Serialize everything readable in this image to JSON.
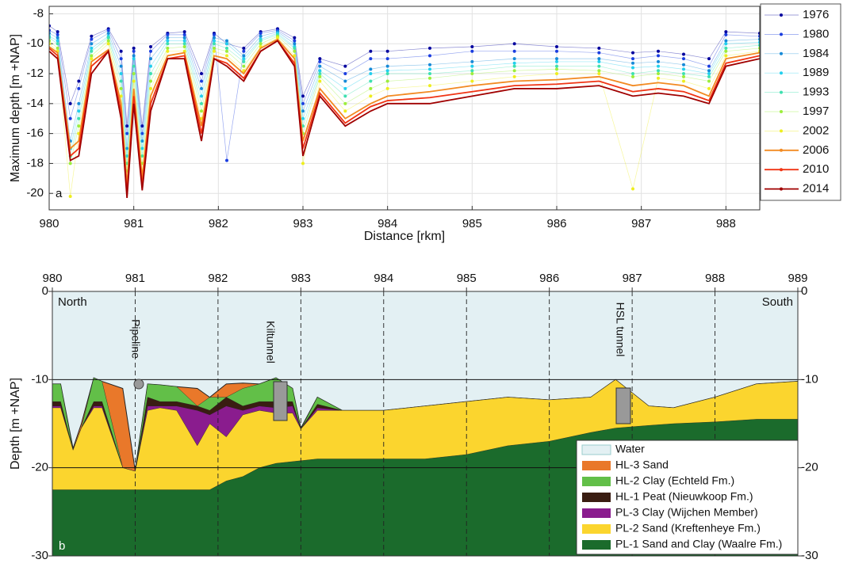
{
  "chart_data": [
    {
      "type": "line",
      "x_label": "Distance [rkm]",
      "y_label": "Maximum depth [m +NAP]",
      "panel_label": "a",
      "xlim": [
        980,
        988.4
      ],
      "ylim": [
        -21.1,
        -7.5
      ],
      "xticks": [
        980,
        981,
        982,
        983,
        984,
        985,
        986,
        987,
        988
      ],
      "yticks": [
        -8,
        -10,
        -12,
        -14,
        -16,
        -18,
        -20
      ],
      "grid": true,
      "legend": "outside right",
      "x": [
        980.0,
        980.1,
        980.25,
        980.35,
        980.5,
        980.7,
        980.85,
        980.92,
        981.0,
        981.1,
        981.2,
        981.4,
        981.6,
        981.8,
        981.95,
        982.1,
        982.3,
        982.5,
        982.7,
        982.9,
        983.0,
        983.2,
        983.5,
        983.8,
        984.0,
        984.5,
        985.0,
        985.5,
        986.0,
        986.5,
        986.9,
        987.2,
        987.5,
        987.8,
        988.0,
        988.4
      ],
      "series": [
        {
          "name": "1976",
          "color": "#00009e",
          "style": "dots",
          "values": [
            -8.8,
            -9.2,
            -14,
            -12.5,
            -9.5,
            -9,
            -10.5,
            -15.5,
            -10.3,
            -15.5,
            -10.2,
            -9.3,
            -9.2,
            -12,
            -9.3,
            -10,
            -10.3,
            -9.2,
            -9,
            -9.6,
            -13.5,
            -11,
            -11.5,
            -10.5,
            -10.5,
            -10.3,
            -10.2,
            -10,
            -10.2,
            -10.3,
            -10.6,
            -10.5,
            -10.7,
            -11,
            -9.2,
            -9.3
          ]
        },
        {
          "name": "1980",
          "color": "#1a3de0",
          "style": "dots",
          "values": [
            -9.1,
            -9.4,
            -15,
            -13,
            -9.7,
            -9.1,
            -11,
            -16,
            -10.5,
            -16,
            -10.5,
            -9.4,
            -9.4,
            -12.5,
            -9.4,
            -17.8,
            -10.5,
            -9.3,
            -9.1,
            -9.8,
            -14,
            -11.2,
            -12,
            -11,
            -11,
            -10.8,
            -10.5,
            -10.5,
            -10.5,
            -10.6,
            -11,
            -10.8,
            -11,
            -11.5,
            -9.4,
            -9.5
          ]
        },
        {
          "name": "1984",
          "color": "#168ad8",
          "style": "dots",
          "values": [
            -9.3,
            -9.6,
            -16.5,
            -14,
            -10,
            -9.3,
            -11.5,
            -17,
            -10.8,
            -16.5,
            -11,
            -9.6,
            -9.6,
            -13,
            -9.6,
            -9.8,
            -10.8,
            -9.5,
            -9.2,
            -10,
            -14.5,
            -11.5,
            -12.5,
            -11.7,
            -11.5,
            -11.4,
            -11.2,
            -11,
            -11,
            -11,
            -11.3,
            -11.2,
            -11.4,
            -11.8,
            -9.8,
            -9.7
          ]
        },
        {
          "name": "1989",
          "color": "#22cfee",
          "style": "dots",
          "values": [
            -9.5,
            -9.8,
            -17,
            -14.5,
            -10.3,
            -9.5,
            -12,
            -17.5,
            -11,
            -17,
            -11.5,
            -9.8,
            -9.8,
            -13.5,
            -9.8,
            -10,
            -11,
            -9.7,
            -9.3,
            -10.2,
            -15,
            -11.8,
            -13,
            -12,
            -11.8,
            -11.7,
            -11.5,
            -11.3,
            -11.2,
            -11.2,
            -11.6,
            -11.5,
            -11.7,
            -12,
            -10,
            -9.9
          ]
        },
        {
          "name": "1993",
          "color": "#3ee0b0",
          "style": "dots",
          "values": [
            -9.6,
            -10,
            -17.5,
            -15,
            -10.5,
            -9.6,
            -12.5,
            -18,
            -11.5,
            -17.5,
            -12,
            -10,
            -10,
            -14,
            -10,
            -10.3,
            -11.2,
            -9.8,
            -9.4,
            -10.3,
            -15.5,
            -12,
            -13.5,
            -12.5,
            -12,
            -12,
            -11.8,
            -11.5,
            -11.5,
            -11.5,
            -12,
            -11.8,
            -12,
            -12.2,
            -10.3,
            -10.1
          ]
        },
        {
          "name": "1997",
          "color": "#9cee3c",
          "style": "dots",
          "values": [
            -9.8,
            -10.3,
            -18,
            -15.5,
            -10.8,
            -9.8,
            -13,
            -18.5,
            -12,
            -18,
            -12.5,
            -10.3,
            -10.2,
            -14.5,
            -10.3,
            -10.5,
            -11.5,
            -10,
            -9.5,
            -10.5,
            -16,
            -12.2,
            -14,
            -13,
            -12.5,
            -12.3,
            -12,
            -11.8,
            -11.7,
            -11.8,
            -12.2,
            -12,
            -12.2,
            -12.5,
            -10.5,
            -10.3
          ]
        },
        {
          "name": "2002",
          "color": "#eeee1e",
          "style": "dots",
          "values": [
            -10,
            -10.5,
            -20.2,
            -16,
            -11,
            -10,
            -13.5,
            -19,
            -12.5,
            -18.5,
            -13,
            -10.5,
            -10.5,
            -15,
            -10.5,
            -10.8,
            -11.8,
            -10.2,
            -9.6,
            -10.8,
            -18,
            -12.5,
            -14.5,
            -13.5,
            -13,
            -12.8,
            -12.5,
            -12.2,
            -12,
            -12,
            -19.7,
            -12.3,
            -12.5,
            -13,
            -10.8,
            -10.5
          ]
        },
        {
          "name": "2006",
          "color": "#f28a22",
          "style": "line",
          "values": [
            -10.2,
            -10.6,
            -17,
            -16.5,
            -11.2,
            -10.4,
            -14,
            -19.5,
            -13,
            -19,
            -13.5,
            -10.8,
            -10.6,
            -15.5,
            -10.8,
            -11,
            -12,
            -10.3,
            -9.7,
            -11,
            -16.5,
            -13,
            -15,
            -14,
            -13.5,
            -13.2,
            -12.8,
            -12.5,
            -12.4,
            -12.2,
            -12.8,
            -12.6,
            -12.8,
            -13.5,
            -11,
            -10.6
          ]
        },
        {
          "name": "2010",
          "color": "#f03414",
          "style": "line",
          "values": [
            -10.3,
            -10.8,
            -17.5,
            -17,
            -11.5,
            -10.5,
            -14.5,
            -20,
            -13.5,
            -19.5,
            -14,
            -11,
            -10.8,
            -16,
            -11,
            -11.3,
            -12.3,
            -10.5,
            -9.8,
            -11.3,
            -17,
            -13.3,
            -15.3,
            -14.2,
            -13.8,
            -13.6,
            -13.2,
            -12.8,
            -12.7,
            -12.5,
            -13.2,
            -13,
            -13.2,
            -13.8,
            -11.3,
            -10.8
          ]
        },
        {
          "name": "2014",
          "color": "#a00000",
          "style": "line",
          "values": [
            -10.5,
            -11,
            -17.8,
            -17.5,
            -12,
            -10.5,
            -15,
            -20.3,
            -14,
            -19.8,
            -14.5,
            -11,
            -11,
            -16.5,
            -11,
            -11.5,
            -12.5,
            -10.5,
            -9.8,
            -11.5,
            -17.5,
            -13.5,
            -15.5,
            -14.5,
            -14,
            -14,
            -13.5,
            -13,
            -13,
            -12.8,
            -13.5,
            -13.3,
            -13.5,
            -14,
            -11.5,
            -11
          ]
        }
      ]
    },
    {
      "type": "area",
      "y_label": "Depth [m +NAP]",
      "panel_label": "b",
      "annotations": [
        "North",
        "South",
        "Pipeline",
        "Kiltunnel",
        "HSL tunnel"
      ],
      "xlim": [
        980,
        989
      ],
      "ylim": [
        -30,
        0
      ],
      "xticks": [
        980,
        981,
        982,
        983,
        984,
        985,
        986,
        987,
        988,
        989
      ],
      "yticks": [
        0,
        -10,
        -20,
        -30
      ],
      "legend": "lower right",
      "x": [
        980.0,
        980.1,
        980.25,
        980.35,
        980.5,
        980.6,
        980.85,
        981.0,
        981.15,
        981.3,
        981.5,
        981.75,
        981.9,
        982.1,
        982.3,
        982.5,
        982.7,
        982.9,
        983.0,
        983.2,
        983.5,
        984.0,
        984.5,
        985.0,
        985.5,
        986.0,
        986.5,
        986.8,
        987.2,
        987.5,
        988.0,
        988.5,
        989.0
      ],
      "series": [
        {
          "name": "Water",
          "color": "#e3f0f3",
          "values": [
            0,
            0,
            0,
            0,
            0,
            0,
            0,
            0,
            0,
            0,
            0,
            0,
            0,
            0,
            0,
            0,
            0,
            0,
            0,
            0,
            0,
            0,
            0,
            0,
            0,
            0,
            0,
            0,
            0,
            0,
            0,
            0,
            0
          ]
        },
        {
          "name": "HL-3 Sand",
          "color": "#e9782a",
          "values": [
            -10.5,
            -10.5,
            -17.8,
            -15,
            -9.8,
            -10.2,
            -11,
            -20.3,
            -10.5,
            -10.6,
            -10.8,
            -11,
            -12,
            -10.5,
            -10.4,
            -10.5,
            -9.8,
            -11,
            -15.5,
            -12,
            -13.5,
            -13.5,
            -13,
            -12.5,
            -12,
            -12.3,
            -12,
            -10,
            -13,
            -13.2,
            -12,
            -10.5,
            -10.2
          ]
        },
        {
          "name": "HL-2 Clay (Echteld Fm.)",
          "color": "#62bf48",
          "values": [
            -10.5,
            -10.5,
            -18,
            -15.5,
            -9.8,
            -10.2,
            -20,
            -20.4,
            -10.5,
            -10.6,
            -10.8,
            -13,
            -12,
            -12,
            -11,
            -10.5,
            -9.8,
            -11,
            -15.6,
            -12,
            -13.5,
            -13.5,
            -13,
            -12.5,
            -12,
            -12.3,
            -12,
            -10,
            -13,
            -13.2,
            -12,
            -10.5,
            -10.2
          ]
        },
        {
          "name": "HL-1 Peat (Nieuwkoop Fm.)",
          "color": "#3a1d12",
          "values": [
            -12.5,
            -12.5,
            -18,
            -15.5,
            -12.5,
            -12.5,
            -20,
            -20.4,
            -12,
            -12.5,
            -12.5,
            -13,
            -13.5,
            -12,
            -13,
            -12.5,
            -12.5,
            -12.5,
            -15.6,
            -12.8,
            -13.5,
            -13.5,
            -13,
            -12.5,
            -12,
            -12.3,
            -12,
            -10,
            -13,
            -13.2,
            -12,
            -10.5,
            -10.2
          ]
        },
        {
          "name": "PL-3 Clay (Wijchen Member)",
          "color": "#8a1c8e",
          "values": [
            -13,
            -13,
            -18,
            -15.5,
            -13,
            -13,
            -20,
            -20.4,
            -13,
            -13,
            -13,
            -13.5,
            -14,
            -13,
            -13.5,
            -13,
            -13.2,
            -13,
            -15.6,
            -13.2,
            -13.5,
            -13.5,
            -13,
            -12.5,
            -12,
            -12.3,
            -12,
            -10,
            -13,
            -13.2,
            -12,
            -10.5,
            -10.2
          ]
        },
        {
          "name": "PL-2 Sand (Kreftenheye Fm.)",
          "color": "#fbd52e",
          "values": [
            -13.2,
            -13.2,
            -18,
            -15.5,
            -13.2,
            -13.2,
            -20,
            -20.4,
            -13.5,
            -13.2,
            -13.5,
            -17.5,
            -15,
            -16.5,
            -14,
            -13.5,
            -13.8,
            -13.8,
            -15.6,
            -13.5,
            -13.5,
            -13.5,
            -13,
            -12.5,
            -12,
            -12.3,
            -12,
            -10,
            -13,
            -13.2,
            -12,
            -10.5,
            -10.2
          ]
        },
        {
          "name": "PL-1 Sand and Clay (Waalre Fm.)",
          "color": "#1b6b2c",
          "values": [
            -22.5,
            -22.5,
            -22.5,
            -22.5,
            -22.5,
            -22.5,
            -22.5,
            -22.5,
            -22.5,
            -22.5,
            -22.5,
            -22.5,
            -22.5,
            -21.5,
            -21,
            -20,
            -19.5,
            -19.3,
            -19.2,
            -19,
            -19,
            -19,
            -19,
            -18.5,
            -17.5,
            -17,
            -16,
            -15.5,
            -15.2,
            -15,
            -14.8,
            -14.5,
            -14.5
          ]
        }
      ]
    }
  ]
}
